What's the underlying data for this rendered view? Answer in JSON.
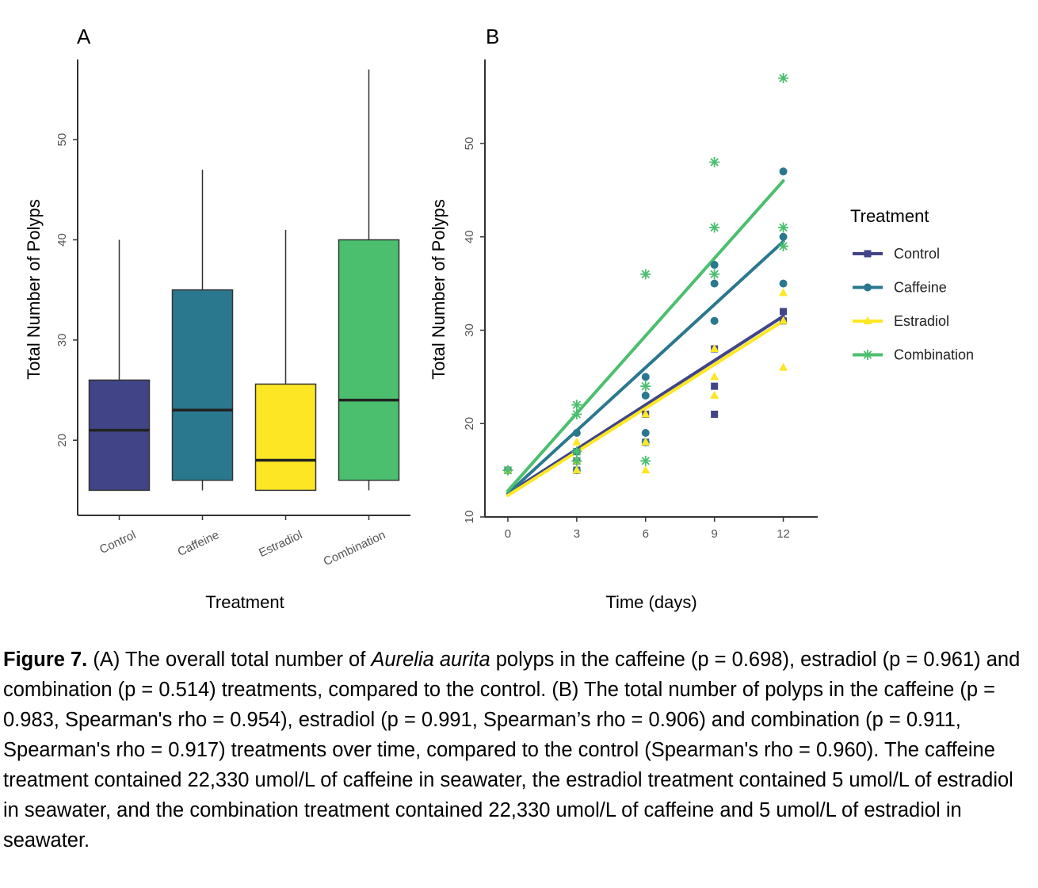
{
  "chart_data": [
    {
      "panel": "A",
      "type": "box",
      "xlabel": "Treatment",
      "ylabel": "Total Number of  Polyps",
      "ylim": [
        12.5,
        58
      ],
      "yticks": [
        20,
        30,
        40,
        50
      ],
      "grid": false,
      "categories": [
        "Control",
        "Caffeine",
        "Estradiol",
        "Combination"
      ],
      "boxes": [
        {
          "category": "Control",
          "min": 15,
          "q1": 15,
          "median": 21,
          "q3": 26,
          "max": 40,
          "color": "#414487"
        },
        {
          "category": "Caffeine",
          "min": 15,
          "q1": 16,
          "median": 23,
          "q3": 35,
          "max": 47,
          "color": "#2A788E"
        },
        {
          "category": "Estradiol",
          "min": 15,
          "q1": 15,
          "median": 18,
          "q3": 25.6,
          "max": 41,
          "color": "#FDE725"
        },
        {
          "category": "Combination",
          "min": 15,
          "q1": 16,
          "median": 24,
          "q3": 40,
          "max": 57,
          "color": "#4BBF6E"
        }
      ]
    },
    {
      "panel": "B",
      "type": "scatter",
      "xlabel": "Time (days)",
      "ylabel": "Total Number of Polyps",
      "xlim": [
        -1,
        13.5
      ],
      "ylim": [
        10,
        59
      ],
      "xticks": [
        0,
        3,
        6,
        9,
        12
      ],
      "yticks": [
        10,
        20,
        30,
        40,
        50
      ],
      "grid": false,
      "legend_title": "Treatment",
      "legend_position": "right",
      "series": [
        {
          "name": "Control",
          "color": "#414487",
          "marker": "square",
          "points": [
            [
              0,
              15
            ],
            [
              3,
              15
            ],
            [
              3,
              16
            ],
            [
              3,
              17
            ],
            [
              6,
              18
            ],
            [
              6,
              21
            ],
            [
              9,
              21
            ],
            [
              9,
              24
            ],
            [
              9,
              28
            ],
            [
              12,
              32
            ],
            [
              12,
              31
            ]
          ],
          "fit": [
            [
              0,
              12.5
            ],
            [
              12,
              31.5
            ]
          ]
        },
        {
          "name": "Caffeine",
          "color": "#2A788E",
          "marker": "circle",
          "points": [
            [
              0,
              15
            ],
            [
              3,
              15
            ],
            [
              3,
              17
            ],
            [
              3,
              19
            ],
            [
              6,
              18
            ],
            [
              6,
              19
            ],
            [
              6,
              23
            ],
            [
              6,
              25
            ],
            [
              9,
              31
            ],
            [
              9,
              35
            ],
            [
              9,
              37
            ],
            [
              12,
              35
            ],
            [
              12,
              40
            ],
            [
              12,
              47
            ]
          ],
          "fit": [
            [
              0,
              12.5
            ],
            [
              12,
              39.5
            ]
          ]
        },
        {
          "name": "Estradiol",
          "color": "#FDE725",
          "marker": "triangle",
          "points": [
            [
              0,
              15
            ],
            [
              3,
              15
            ],
            [
              3,
              16
            ],
            [
              3,
              18
            ],
            [
              6,
              15
            ],
            [
              6,
              18
            ],
            [
              6,
              21
            ],
            [
              9,
              23
            ],
            [
              9,
              25
            ],
            [
              9,
              28
            ],
            [
              12,
              26
            ],
            [
              12,
              31
            ],
            [
              12,
              34
            ]
          ],
          "fit": [
            [
              0,
              12.3
            ],
            [
              12,
              31
            ]
          ]
        },
        {
          "name": "Combination",
          "color": "#4BBF6E",
          "marker": "asterisk",
          "points": [
            [
              0,
              15
            ],
            [
              3,
              16
            ],
            [
              3,
              17
            ],
            [
              3,
              21
            ],
            [
              3,
              22
            ],
            [
              6,
              16
            ],
            [
              6,
              24
            ],
            [
              6,
              36
            ],
            [
              9,
              36
            ],
            [
              9,
              41
            ],
            [
              9,
              48
            ],
            [
              12,
              39
            ],
            [
              12,
              41
            ],
            [
              12,
              57
            ]
          ],
          "fit": [
            [
              0,
              12.8
            ],
            [
              12,
              46
            ]
          ]
        }
      ]
    }
  ],
  "caption": {
    "figure_label": "Figure 7.",
    "text_before_species": " (A) The overall total number of ",
    "species": "Aurelia aurita",
    "text_after_species": " polyps in the caffeine (p = 0.698), estradiol (p = 0.961) and combination (p = 0.514) treatments, compared to the control. (B) The total number of polyps in the caffeine (p = 0.983, Spearman's rho = 0.954), estradiol (p = 0.991, Spearman’s rho = 0.906) and combination (p = 0.911, Spearman's rho = 0.917) treatments over time, compared to the control (Spearman's rho = 0.960). The caffeine treatment contained 22,330 umol/L of caffeine in seawater, the estradiol treatment contained 5 umol/L of estradiol in seawater, and the combination treatment contained 22,330 umol/L of caffeine and 5 umol/L of estradiol in seawater."
  }
}
